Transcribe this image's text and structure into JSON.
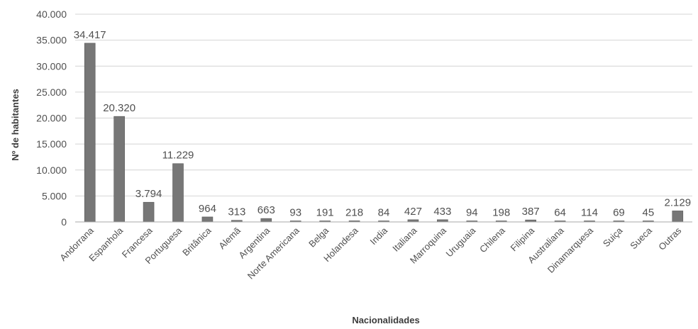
{
  "chart_data": {
    "type": "bar",
    "categories": [
      "Andorrana",
      "Espanhola",
      "Francesa",
      "Portuguesa",
      "Britânica",
      "Alemã",
      "Argentina",
      "Norte Americana",
      "Belga",
      "Holandesa",
      "India",
      "Italiana",
      "Marroquina",
      "Uruguaia",
      "Chilena",
      "Filipina",
      "Australiana",
      "Dinamarquesa",
      "Suiça",
      "Sueca",
      "Outras"
    ],
    "values": [
      34417,
      20320,
      3794,
      11229,
      964,
      313,
      663,
      93,
      191,
      218,
      84,
      427,
      433,
      94,
      198,
      387,
      64,
      114,
      69,
      45,
      2129
    ],
    "data_labels": [
      "34.417",
      "20.320",
      "3.794",
      "11.229",
      "964",
      "313",
      "663",
      "93",
      "191",
      "218",
      "84",
      "427",
      "433",
      "94",
      "198",
      "387",
      "64",
      "114",
      "69",
      "45",
      "2.129"
    ],
    "yticks": [
      0,
      5000,
      10000,
      15000,
      20000,
      25000,
      30000,
      35000,
      40000
    ],
    "ytick_labels": [
      "0",
      "5.000",
      "10.000",
      "15.000",
      "20.000",
      "25.000",
      "30.000",
      "35.000",
      "40.000"
    ],
    "ylim": [
      0,
      40000
    ],
    "xlabel": "Nacionalidades",
    "ylabel": "Nº de habitantes",
    "grid": true,
    "legend": "none",
    "colors": {
      "bar": "#777777",
      "bar_edge": "#5a5a5a",
      "grid": "#d4d4d4",
      "axis": "#a8a8a8",
      "text": "#505050"
    }
  }
}
